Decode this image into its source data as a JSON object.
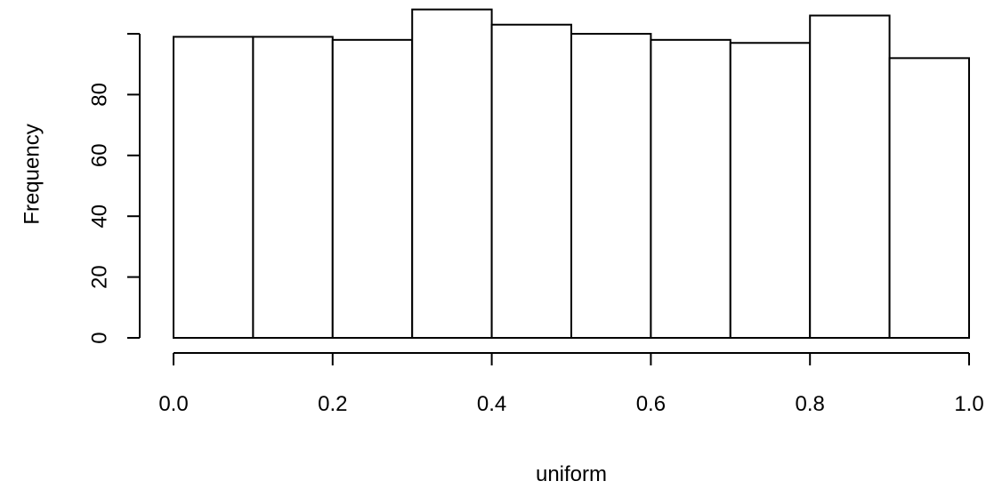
{
  "chart_data": {
    "type": "bar",
    "bins": [
      {
        "start": 0.0,
        "end": 0.1,
        "count": 99
      },
      {
        "start": 0.1,
        "end": 0.2,
        "count": 99
      },
      {
        "start": 0.2,
        "end": 0.3,
        "count": 98
      },
      {
        "start": 0.3,
        "end": 0.4,
        "count": 108
      },
      {
        "start": 0.4,
        "end": 0.5,
        "count": 103
      },
      {
        "start": 0.5,
        "end": 0.6,
        "count": 100
      },
      {
        "start": 0.6,
        "end": 0.7,
        "count": 98
      },
      {
        "start": 0.7,
        "end": 0.8,
        "count": 97
      },
      {
        "start": 0.8,
        "end": 0.9,
        "count": 106
      },
      {
        "start": 0.9,
        "end": 1.0,
        "count": 92
      }
    ],
    "title": "",
    "xlabel": "uniform",
    "ylabel": "Frequency",
    "xlim": [
      0,
      1
    ],
    "ylim": [
      0,
      100
    ],
    "x_ticks": [
      "0.0",
      "0.2",
      "0.4",
      "0.6",
      "0.8",
      "1.0"
    ],
    "y_ticks": [
      "0",
      "20",
      "40",
      "60",
      "80"
    ],
    "grid": false,
    "colors": {
      "bar_fill": "#ffffff",
      "bar_stroke": "#000000"
    }
  }
}
